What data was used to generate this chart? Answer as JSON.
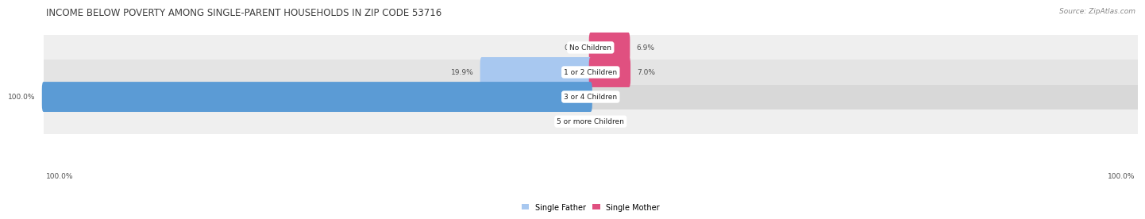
{
  "title": "INCOME BELOW POVERTY AMONG SINGLE-PARENT HOUSEHOLDS IN ZIP CODE 53716",
  "source": "Source: ZipAtlas.com",
  "categories": [
    "No Children",
    "1 or 2 Children",
    "3 or 4 Children",
    "5 or more Children"
  ],
  "single_father": [
    0.0,
    19.9,
    100.0,
    0.0
  ],
  "single_mother": [
    6.9,
    7.0,
    0.0,
    0.0
  ],
  "father_color_light": "#A8C8F0",
  "father_color_dark": "#5B9BD5",
  "mother_color_light": "#F4ACBE",
  "mother_color_dark": "#E05080",
  "row_bg_odd": "#EFEFEF",
  "row_bg_even": "#E4E4E4",
  "row_bg_dark": "#D8D8D8",
  "max_value": 100.0,
  "label_color": "#505050",
  "title_fontsize": 8.5,
  "source_fontsize": 6.5,
  "bar_label_fontsize": 6.5,
  "category_fontsize": 6.5,
  "legend_fontsize": 7,
  "axis_label_fontsize": 6.5,
  "bottom_labels": [
    "100.0%",
    "100.0%"
  ]
}
